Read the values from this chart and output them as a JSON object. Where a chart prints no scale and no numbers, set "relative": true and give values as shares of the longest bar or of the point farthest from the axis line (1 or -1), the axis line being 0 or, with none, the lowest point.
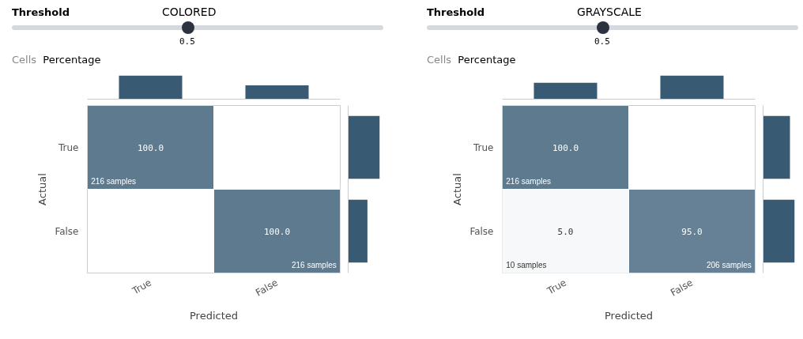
{
  "chart_data": [
    {
      "type": "heatmap",
      "xlabel": "Predicted",
      "ylabel": "Actual",
      "categories": [
        "True",
        "False"
      ],
      "y_categories": [
        "True",
        "False"
      ],
      "color": "#5e7a8f",
      "cells": [
        [
          100.0,
          null
        ],
        [
          null,
          100.0
        ]
      ],
      "cell_labels": [
        [
          "100.0",
          null
        ],
        [
          null,
          "100.0"
        ]
      ],
      "annotations": [
        "216 samples",
        "216 samples"
      ]
    },
    {
      "type": "bar",
      "title": "COLORED",
      "annotations": [
        "Threshold",
        "0.5",
        "Cells",
        "Percentage"
      ],
      "relative": true,
      "categories": [
        null,
        null
      ],
      "values": [
        1,
        0.58
      ],
      "color": "#385a72"
    },
    {
      "type": "bar",
      "relative": true,
      "orientation": "horizontal",
      "categories": [
        null,
        null
      ],
      "values": [
        1,
        0.61
      ],
      "color": "#385a72"
    },
    {
      "type": "heatmap",
      "xlabel": "Predicted",
      "ylabel": "Actual",
      "categories": [
        "True",
        "False"
      ],
      "y_categories": [
        "True",
        "False"
      ],
      "color": "#5e7a8f",
      "cells": [
        [
          100.0,
          null
        ],
        [
          5.0,
          95.0
        ]
      ],
      "cell_labels": [
        [
          "100.0",
          null
        ],
        [
          "5.0",
          "95.0"
        ]
      ],
      "annotations": [
        "216 samples",
        "10 samples",
        "206 samples"
      ]
    },
    {
      "type": "bar",
      "title": "GRAYSCALE",
      "annotations": [
        "Threshold",
        "0.5",
        "Cells",
        "Percentage"
      ],
      "relative": true,
      "categories": [
        null,
        null
      ],
      "values": [
        0.69,
        1
      ],
      "color": "#385a72"
    },
    {
      "type": "bar",
      "relative": true,
      "orientation": "horizontal",
      "categories": [
        null,
        null
      ],
      "values": [
        0.85,
        1
      ],
      "color": "#385a72"
    }
  ]
}
